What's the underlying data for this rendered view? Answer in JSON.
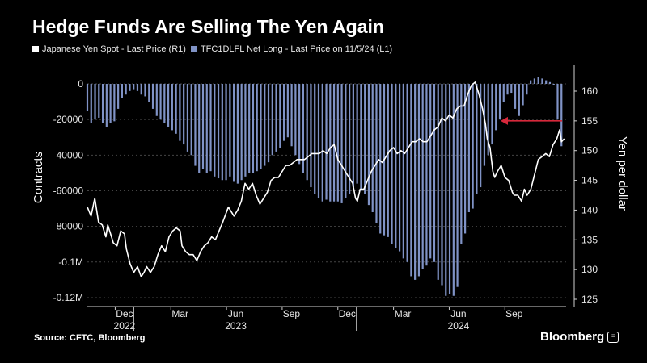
{
  "header": {
    "title": "Hedge Funds Are Selling The Yen Again"
  },
  "legend": {
    "yen_label": "Japanese Yen Spot - Last Price (R1)",
    "positions_label": "TFC1DLFL Net Long - Last Price on 11/5/24 (L1)"
  },
  "footer": {
    "source": "Source: CFTC, Bloomberg",
    "brand": "Bloomberg"
  },
  "colors": {
    "background": "#000000",
    "yen_line": "#ffffff",
    "bars": "#8093c6",
    "grid": "#444444",
    "arrow": "#d6283b"
  },
  "chart_data": {
    "type": "bar+line",
    "title": "Hedge Funds Are Selling The Yen Again",
    "x_range_months": [
      "2022-10",
      "2024-11"
    ],
    "x_ticks": [
      {
        "label": "Dec",
        "year": "2022",
        "m": 2
      },
      {
        "label": "Mar",
        "year": "",
        "m": 5
      },
      {
        "label": "Jun",
        "year": "2023",
        "m": 8
      },
      {
        "label": "Sep",
        "year": "",
        "m": 11
      },
      {
        "label": "Dec",
        "year": "",
        "m": 14
      },
      {
        "label": "Mar",
        "year": "",
        "m": 17
      },
      {
        "label": "Jun",
        "year": "2024",
        "m": 20
      },
      {
        "label": "Sep",
        "year": "",
        "m": 23
      }
    ],
    "left_axis": {
      "label": "Contracts",
      "min": -125000,
      "max": 0,
      "ticks": [
        0,
        -20000,
        -40000,
        -60000,
        -80000,
        -100000,
        -120000
      ],
      "tick_labels": [
        "0",
        "-20000",
        "-40000",
        "-60000",
        "-80000",
        "-0.1M",
        "-0.12M"
      ]
    },
    "right_axis": {
      "label": "Yen per dollar",
      "min": 125,
      "max": 163,
      "ticks": [
        160,
        155,
        150,
        145,
        140,
        135,
        130,
        125
      ],
      "tick_labels": [
        "160",
        "155",
        "150",
        "145",
        "140",
        "135",
        "130",
        "125"
      ]
    },
    "series": [
      {
        "name": "TFC1DLFL Net Long - Last Price on 11/5/24 (L1)",
        "axis": "left",
        "type": "bar",
        "weekly_values": [
          -15000,
          -22000,
          -20000,
          -19000,
          -22000,
          -24000,
          -22000,
          -21000,
          -14000,
          -8000,
          -6000,
          -4000,
          -3000,
          -4000,
          -6000,
          -7000,
          -10000,
          -14000,
          -18000,
          -20000,
          -22000,
          -24000,
          -26000,
          -28000,
          -32000,
          -34000,
          -38000,
          -40000,
          -46000,
          -50000,
          -48000,
          -50000,
          -49000,
          -52000,
          -53000,
          -54000,
          -54000,
          -52000,
          -55000,
          -56000,
          -54000,
          -52000,
          -50000,
          -50000,
          -49000,
          -48000,
          -46000,
          -44000,
          -40000,
          -38000,
          -36000,
          -32000,
          -30000,
          -35000,
          -40000,
          -45000,
          -50000,
          -54000,
          -58000,
          -62000,
          -64000,
          -66000,
          -65000,
          -66000,
          -66000,
          -66000,
          -67000,
          -64000,
          -62000,
          -58000,
          -56000,
          -60000,
          -62000,
          -68000,
          -72000,
          -78000,
          -84000,
          -85000,
          -86000,
          -90000,
          -92000,
          -94000,
          -98000,
          -100000,
          -108000,
          -110000,
          -108000,
          -104000,
          -102000,
          -98000,
          -100000,
          -110000,
          -113000,
          -119000,
          -118000,
          -119000,
          -114000,
          -90000,
          -84000,
          -72000,
          -70000,
          -62000,
          -58000,
          -46000,
          -40000,
          -34000,
          -26000,
          -20000,
          -10000,
          -6000,
          -5000,
          -14000,
          -18000,
          -12000,
          -6000,
          2000,
          3000,
          4000,
          3000,
          2000,
          1000,
          0,
          -20000,
          -35000
        ]
      },
      {
        "name": "Japanese Yen Spot - Last Price (R1)",
        "axis": "right",
        "type": "line",
        "points": [
          [
            0.0,
            140.5
          ],
          [
            0.2,
            139.0
          ],
          [
            0.4,
            142.0
          ],
          [
            0.6,
            138.0
          ],
          [
            0.8,
            137.5
          ],
          [
            1.0,
            135.5
          ],
          [
            1.1,
            137.5
          ],
          [
            1.25,
            136.0
          ],
          [
            1.4,
            134.5
          ],
          [
            1.6,
            134.0
          ],
          [
            1.8,
            136.5
          ],
          [
            2.0,
            136.0
          ],
          [
            2.1,
            133.5
          ],
          [
            2.3,
            131.0
          ],
          [
            2.5,
            129.5
          ],
          [
            2.7,
            130.5
          ],
          [
            2.9,
            128.8
          ],
          [
            3.05,
            129.5
          ],
          [
            3.2,
            130.5
          ],
          [
            3.4,
            129.5
          ],
          [
            3.6,
            130.5
          ],
          [
            3.8,
            132.5
          ],
          [
            4.0,
            134.0
          ],
          [
            4.2,
            133.0
          ],
          [
            4.4,
            135.5
          ],
          [
            4.6,
            136.5
          ],
          [
            4.8,
            137.0
          ],
          [
            5.0,
            136.5
          ],
          [
            5.1,
            134.0
          ],
          [
            5.3,
            133.0
          ],
          [
            5.5,
            132.5
          ],
          [
            5.7,
            132.5
          ],
          [
            5.9,
            131.5
          ],
          [
            6.1,
            133.0
          ],
          [
            6.3,
            134.0
          ],
          [
            6.5,
            134.5
          ],
          [
            6.7,
            135.5
          ],
          [
            6.9,
            135.0
          ],
          [
            7.1,
            136.5
          ],
          [
            7.3,
            138.0
          ],
          [
            7.6,
            140.5
          ],
          [
            7.9,
            139.0
          ],
          [
            8.1,
            140.0
          ],
          [
            8.3,
            141.5
          ],
          [
            8.5,
            144.5
          ],
          [
            8.7,
            143.5
          ],
          [
            8.9,
            144.5
          ],
          [
            9.1,
            142.5
          ],
          [
            9.3,
            141.0
          ],
          [
            9.5,
            142.0
          ],
          [
            9.7,
            143.0
          ],
          [
            9.9,
            145.0
          ],
          [
            10.1,
            145.5
          ],
          [
            10.3,
            145.5
          ],
          [
            10.5,
            146.5
          ],
          [
            10.7,
            147.5
          ],
          [
            10.9,
            147.5
          ],
          [
            11.1,
            148.0
          ],
          [
            11.3,
            148.5
          ],
          [
            11.5,
            148.5
          ],
          [
            11.7,
            148.5
          ],
          [
            11.9,
            149.0
          ],
          [
            12.1,
            149.5
          ],
          [
            12.3,
            149.5
          ],
          [
            12.5,
            149.5
          ],
          [
            12.7,
            150.0
          ],
          [
            12.9,
            149.5
          ],
          [
            13.1,
            150.5
          ],
          [
            13.3,
            151.0
          ],
          [
            13.5,
            148.5
          ],
          [
            13.7,
            147.5
          ],
          [
            13.9,
            146.5
          ],
          [
            14.1,
            145.5
          ],
          [
            14.3,
            144.5
          ],
          [
            14.45,
            142.0
          ],
          [
            14.55,
            141.5
          ],
          [
            14.7,
            143.5
          ],
          [
            14.9,
            143.5
          ],
          [
            15.1,
            145.0
          ],
          [
            15.3,
            146.5
          ],
          [
            15.5,
            147.5
          ],
          [
            15.7,
            148.5
          ],
          [
            15.9,
            148.0
          ],
          [
            16.1,
            149.0
          ],
          [
            16.3,
            150.0
          ],
          [
            16.5,
            150.5
          ],
          [
            16.7,
            149.5
          ],
          [
            16.9,
            150.0
          ],
          [
            17.1,
            149.5
          ],
          [
            17.3,
            150.5
          ],
          [
            17.5,
            151.5
          ],
          [
            17.7,
            151.5
          ],
          [
            17.9,
            152.0
          ],
          [
            18.1,
            151.5
          ],
          [
            18.3,
            151.5
          ],
          [
            18.5,
            152.5
          ],
          [
            18.7,
            153.5
          ],
          [
            18.9,
            154.0
          ],
          [
            19.1,
            155.5
          ],
          [
            19.3,
            155.0
          ],
          [
            19.5,
            156.0
          ],
          [
            19.7,
            155.5
          ],
          [
            19.9,
            157.0
          ],
          [
            20.1,
            157.5
          ],
          [
            20.3,
            157.5
          ],
          [
            20.5,
            159.5
          ],
          [
            20.7,
            161.0
          ],
          [
            20.9,
            161.5
          ],
          [
            21.1,
            159.5
          ],
          [
            21.3,
            157.0
          ],
          [
            21.45,
            154.5
          ],
          [
            21.55,
            152.0
          ],
          [
            21.7,
            150.5
          ],
          [
            21.85,
            146.5
          ],
          [
            21.95,
            145.5
          ],
          [
            22.1,
            146.5
          ],
          [
            22.3,
            147.5
          ],
          [
            22.5,
            145.5
          ],
          [
            22.7,
            145.0
          ],
          [
            22.9,
            143.0
          ],
          [
            23.0,
            142.5
          ],
          [
            23.2,
            142.5
          ],
          [
            23.4,
            141.5
          ],
          [
            23.55,
            143.5
          ],
          [
            23.7,
            142.5
          ],
          [
            23.9,
            143.5
          ],
          [
            24.1,
            146.0
          ],
          [
            24.3,
            148.5
          ],
          [
            24.5,
            149.0
          ],
          [
            24.7,
            149.5
          ],
          [
            24.9,
            149.0
          ],
          [
            25.1,
            151.0
          ],
          [
            25.3,
            152.0
          ],
          [
            25.45,
            153.5
          ],
          [
            25.55,
            151.5
          ],
          [
            25.7,
            152.0
          ]
        ]
      }
    ],
    "annotations": [
      {
        "type": "arrow",
        "description": "red arrow pointing left at the start of the 2024 yen decline"
      }
    ]
  }
}
